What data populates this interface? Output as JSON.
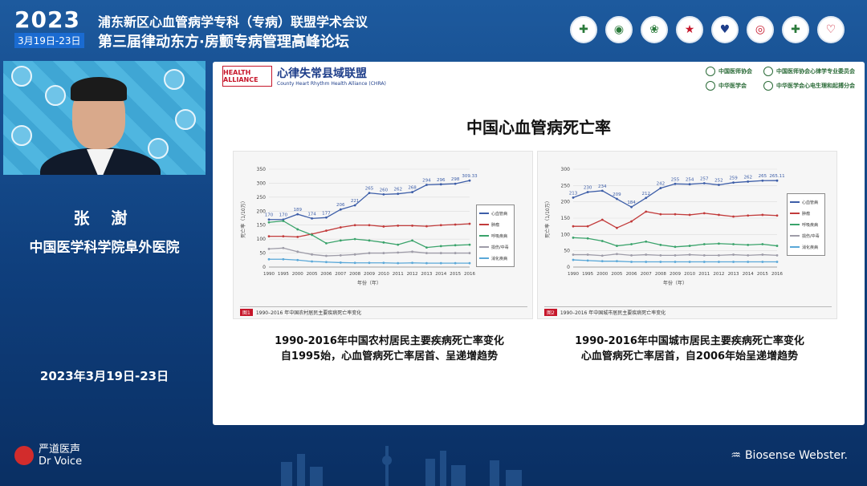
{
  "header": {
    "year": "2023",
    "date_range": "3月19日-23日",
    "title_line1": "浦东新区心血管病学专科（专病）联盟学术会议",
    "title_line2": "第三届律动东方·房颤专病管理高峰论坛",
    "logos": [
      "hospital-logo-1",
      "hospital-logo-2",
      "hospital-logo-3",
      "hospital-logo-4",
      "hospital-logo-5",
      "hospital-logo-6",
      "hospital-logo-7",
      "hospital-logo-8"
    ]
  },
  "speaker": {
    "name": "张 澍",
    "organization": "中国医学科学院阜外医院",
    "event_date": "2023年3月19日-23日"
  },
  "slide": {
    "alliance_mark": "HEALTH ALLIANCE",
    "alliance_cn": "心律失常县域联盟",
    "alliance_en": "County Heart Rhythm Health Alliance (CHRA)",
    "partners": [
      "中国医师协会",
      "中国医师协会心律学专业委员会",
      "中华医学会",
      "中华医学会心电生理和起搏分会"
    ],
    "title": "中国心血管病死亡率",
    "left_caption_line1": "1990-2016年中国农村居民主要疾病死亡率变化",
    "left_caption_line2": "自1995始，心血管病死亡率居首、呈递增趋势",
    "right_caption_line1": "1990-2016年中国城市居民主要疾病死亡率变化",
    "right_caption_line2": "心血管病死亡率居首，自2006年始呈递增趋势",
    "left_fig_no": "图1",
    "left_fig_caption": "1990–2016 年中国农村居民主要疾病死亡率变化",
    "right_fig_no": "图2",
    "right_fig_caption": "1990–2016 年中国城市居民主要疾病死亡率变化",
    "legend": [
      "心血管病",
      "肿瘤",
      "呼吸疾病",
      "损伤/中毒",
      "消化疾病"
    ]
  },
  "chart_data": [
    {
      "type": "line",
      "ylabel": "死亡率（1/10万）",
      "xlabel": "年份（年）",
      "ylim": [
        0,
        350
      ],
      "x": [
        "1990",
        "1995",
        "2000",
        "2005",
        "2006",
        "2007",
        "2008",
        "2009",
        "2010",
        "2011",
        "2012",
        "2013",
        "2014",
        "2015",
        "2016"
      ],
      "series": [
        {
          "name": "心血管病",
          "color": "#3d5ea8",
          "values": [
            170,
            170,
            189,
            174,
            177,
            206,
            221,
            265,
            260,
            262,
            268,
            294,
            296,
            298,
            309.33
          ],
          "labels": [
            "170",
            "170",
            "189",
            "174",
            "177",
            "206",
            "221",
            "265",
            "260",
            "262",
            "268",
            "294",
            "296",
            "298",
            "309.33"
          ]
        },
        {
          "name": "肿瘤",
          "color": "#c23b3b",
          "values": [
            110,
            110,
            108,
            118,
            130,
            142,
            150,
            150,
            145,
            148,
            148,
            146,
            150,
            152,
            155
          ]
        },
        {
          "name": "呼吸疾病",
          "color": "#3aa36b",
          "values": [
            160,
            165,
            135,
            115,
            85,
            95,
            100,
            95,
            88,
            80,
            95,
            70,
            75,
            78,
            80
          ]
        },
        {
          "name": "损伤/中毒",
          "color": "#9e9ca8",
          "values": [
            65,
            68,
            55,
            45,
            40,
            42,
            45,
            50,
            50,
            52,
            55,
            50,
            50,
            50,
            50
          ]
        },
        {
          "name": "消化疾病",
          "color": "#5aa8d8",
          "values": [
            28,
            28,
            25,
            20,
            18,
            16,
            15,
            15,
            15,
            14,
            15,
            14,
            14,
            14,
            14
          ]
        }
      ]
    },
    {
      "type": "line",
      "ylabel": "死亡率（1/10万）",
      "xlabel": "年份（年）",
      "ylim": [
        0,
        300
      ],
      "x": [
        "1990",
        "1995",
        "2000",
        "2005",
        "2006",
        "2007",
        "2008",
        "2009",
        "2010",
        "2011",
        "2012",
        "2013",
        "2014",
        "2015",
        "2016"
      ],
      "series": [
        {
          "name": "心血管病",
          "color": "#3d5ea8",
          "values": [
            213,
            230,
            234,
            209,
            184,
            212,
            242,
            255,
            254,
            257,
            252,
            259,
            262,
            265,
            265.11
          ],
          "labels": [
            "213",
            "230",
            "234",
            "209",
            "184",
            "212",
            "242",
            "255",
            "254",
            "257",
            "252",
            "259",
            "262",
            "265",
            "265.11"
          ]
        },
        {
          "name": "肿瘤",
          "color": "#c23b3b",
          "values": [
            125,
            125,
            145,
            120,
            140,
            170,
            162,
            162,
            160,
            165,
            160,
            155,
            158,
            160,
            158
          ]
        },
        {
          "name": "呼吸疾病",
          "color": "#3aa36b",
          "values": [
            90,
            88,
            80,
            65,
            70,
            78,
            68,
            62,
            65,
            70,
            72,
            70,
            68,
            70,
            65
          ]
        },
        {
          "name": "损伤/中毒",
          "color": "#9e9ca8",
          "values": [
            38,
            38,
            35,
            40,
            36,
            38,
            36,
            36,
            38,
            36,
            36,
            38,
            36,
            38,
            36
          ]
        },
        {
          "name": "消化疾病",
          "color": "#5aa8d8",
          "values": [
            22,
            20,
            18,
            18,
            16,
            16,
            16,
            16,
            16,
            16,
            16,
            16,
            16,
            16,
            16
          ]
        }
      ]
    }
  ],
  "footer": {
    "brand_cn": "严道医声",
    "brand_en": "Dr Voice",
    "sponsor": "Biosense Webster."
  }
}
